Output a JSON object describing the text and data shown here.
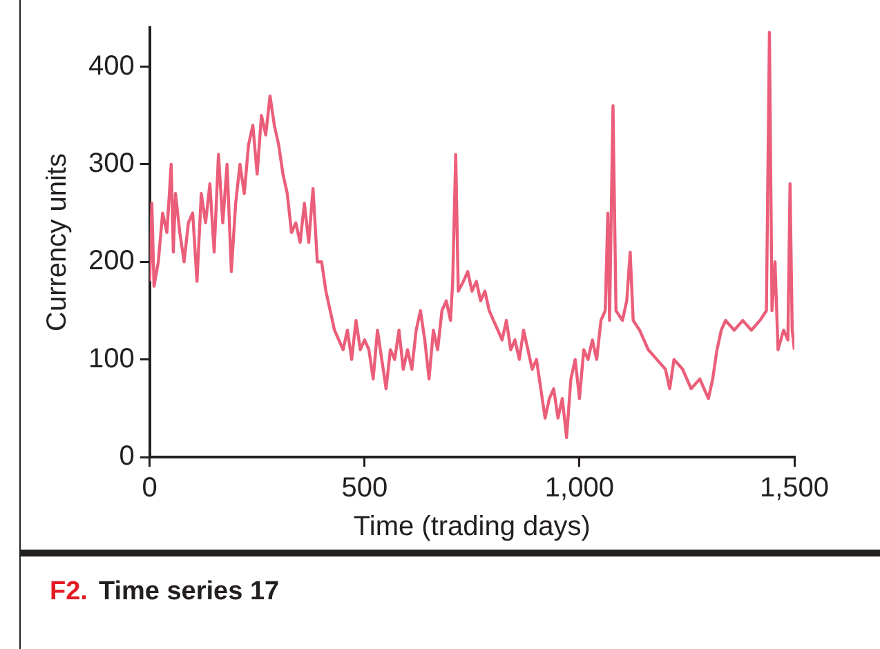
{
  "chart_data": {
    "type": "line",
    "title": "Time series 17",
    "annotations": [
      "F2."
    ],
    "xlabel": "Time (trading days)",
    "ylabel": "Currency units",
    "xlim": [
      0,
      1500
    ],
    "xticks": [
      0,
      500,
      {
        "value": 1000,
        "label": "1,000"
      },
      {
        "value": 1500,
        "label": "1,500"
      }
    ],
    "ylim": [
      0,
      440
    ],
    "yticks": [
      0,
      100,
      200,
      300,
      400
    ],
    "grid": false,
    "legend": false,
    "marker": "none",
    "line_style": "solid",
    "series": [
      {
        "color": "#eb5e7a",
        "x": [
          0,
          5,
          10,
          20,
          30,
          40,
          50,
          55,
          60,
          70,
          80,
          90,
          100,
          110,
          120,
          130,
          140,
          150,
          160,
          170,
          180,
          190,
          200,
          210,
          220,
          230,
          240,
          250,
          260,
          270,
          280,
          290,
          300,
          310,
          320,
          330,
          340,
          350,
          360,
          370,
          380,
          390,
          400,
          410,
          420,
          430,
          440,
          450,
          460,
          470,
          480,
          490,
          500,
          510,
          520,
          530,
          540,
          550,
          560,
          570,
          580,
          590,
          600,
          610,
          620,
          630,
          640,
          650,
          660,
          670,
          680,
          690,
          700,
          705,
          712,
          718,
          730,
          740,
          750,
          760,
          770,
          780,
          790,
          800,
          810,
          820,
          830,
          840,
          850,
          860,
          870,
          880,
          890,
          900,
          910,
          920,
          930,
          940,
          950,
          960,
          970,
          980,
          990,
          1000,
          1010,
          1020,
          1030,
          1040,
          1050,
          1060,
          1066,
          1070,
          1078,
          1085,
          1100,
          1110,
          1118,
          1125,
          1140,
          1160,
          1180,
          1200,
          1210,
          1220,
          1240,
          1260,
          1280,
          1300,
          1310,
          1320,
          1330,
          1340,
          1360,
          1380,
          1400,
          1420,
          1435,
          1442,
          1448,
          1455,
          1462,
          1475,
          1485,
          1490,
          1495,
          1500
        ],
        "values": [
          180,
          260,
          175,
          200,
          250,
          230,
          300,
          210,
          270,
          230,
          200,
          240,
          250,
          180,
          270,
          240,
          280,
          210,
          310,
          240,
          300,
          190,
          260,
          300,
          270,
          320,
          340,
          290,
          350,
          330,
          370,
          340,
          320,
          290,
          270,
          230,
          240,
          220,
          260,
          220,
          275,
          200,
          200,
          170,
          150,
          130,
          120,
          110,
          130,
          100,
          140,
          110,
          120,
          110,
          80,
          130,
          100,
          70,
          110,
          100,
          130,
          90,
          110,
          90,
          130,
          150,
          120,
          80,
          130,
          110,
          150,
          160,
          140,
          180,
          310,
          170,
          180,
          190,
          170,
          180,
          160,
          170,
          150,
          140,
          130,
          120,
          140,
          110,
          120,
          100,
          130,
          110,
          90,
          100,
          70,
          40,
          60,
          70,
          40,
          60,
          20,
          80,
          100,
          60,
          110,
          100,
          120,
          100,
          140,
          150,
          250,
          140,
          360,
          150,
          140,
          160,
          210,
          140,
          130,
          110,
          100,
          90,
          70,
          100,
          90,
          70,
          80,
          60,
          80,
          110,
          130,
          140,
          130,
          140,
          130,
          140,
          150,
          435,
          150,
          200,
          110,
          130,
          120,
          280,
          130,
          110
        ]
      }
    ]
  }
}
